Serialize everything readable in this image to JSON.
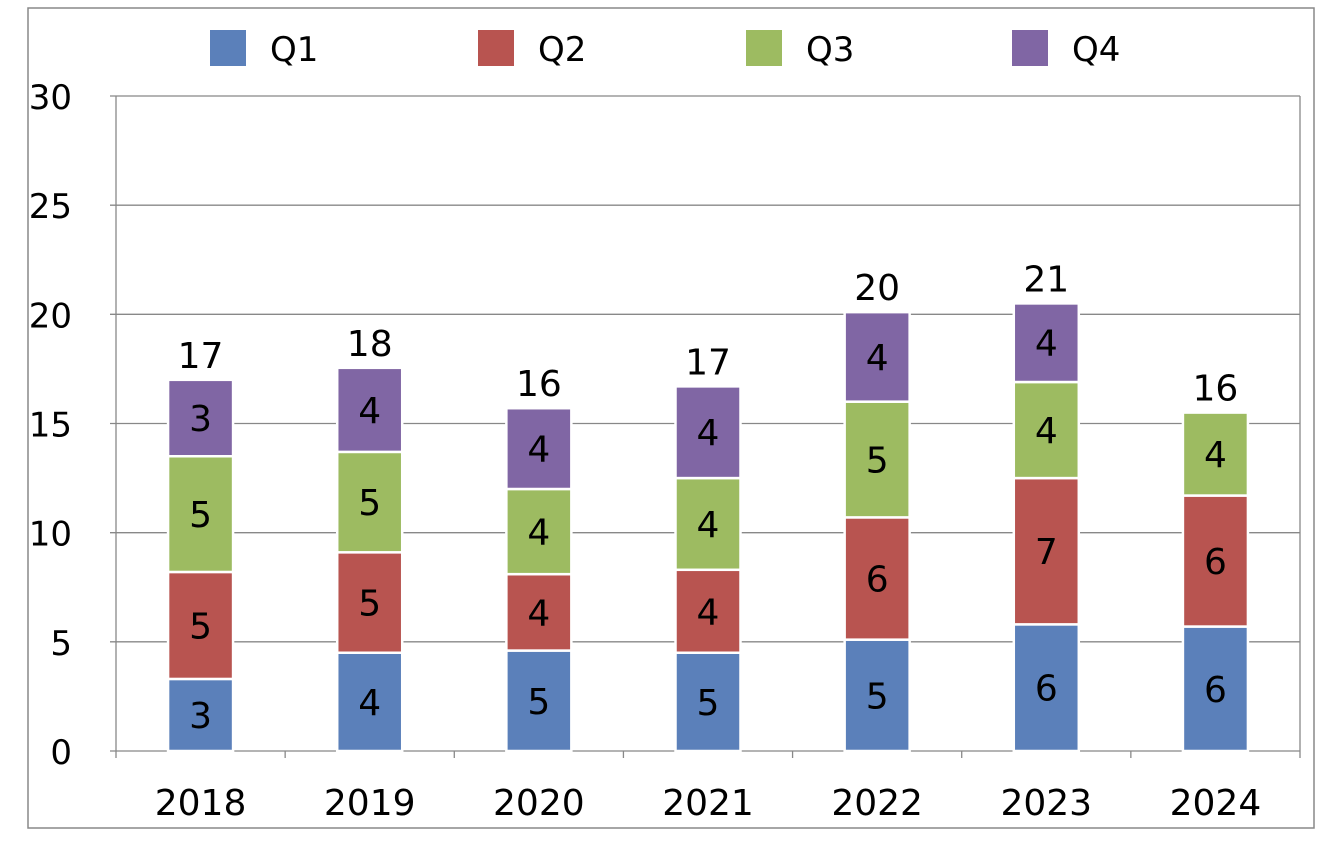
{
  "chart_data": {
    "type": "bar",
    "stacked": true,
    "title": "",
    "xlabel": "",
    "ylabel": "",
    "ylim": [
      0,
      30
    ],
    "yticks": [
      0,
      5,
      10,
      15,
      20,
      25,
      30
    ],
    "grid": true,
    "legend_position": "top",
    "categories": [
      "2018",
      "2019",
      "2020",
      "2021",
      "2022",
      "2023",
      "2024"
    ],
    "series": [
      {
        "name": "Q1",
        "color": "#5B80BA",
        "values": [
          3.3,
          4.5,
          4.6,
          4.5,
          5.1,
          5.8,
          5.7
        ],
        "labels": [
          "3",
          "4",
          "5",
          "5",
          "5",
          "6",
          "6"
        ]
      },
      {
        "name": "Q2",
        "color": "#B85450",
        "values": [
          4.9,
          4.6,
          3.5,
          3.8,
          5.6,
          6.7,
          6.0
        ],
        "labels": [
          "5",
          "5",
          "4",
          "4",
          "6",
          "7",
          "6"
        ]
      },
      {
        "name": "Q3",
        "color": "#9DBB61",
        "values": [
          5.3,
          4.6,
          3.9,
          4.2,
          5.3,
          4.4,
          3.8
        ],
        "labels": [
          "5",
          "5",
          "4",
          "4",
          "5",
          "4",
          "4"
        ]
      },
      {
        "name": "Q4",
        "color": "#8066A4",
        "values": [
          3.5,
          3.85,
          3.7,
          4.2,
          4.1,
          3.6,
          null
        ],
        "labels": [
          "3",
          "4",
          "4",
          "4",
          "4",
          "4",
          null
        ]
      }
    ],
    "totals": [
      "17",
      "18",
      "16",
      "17",
      "20",
      "21",
      "16"
    ]
  }
}
